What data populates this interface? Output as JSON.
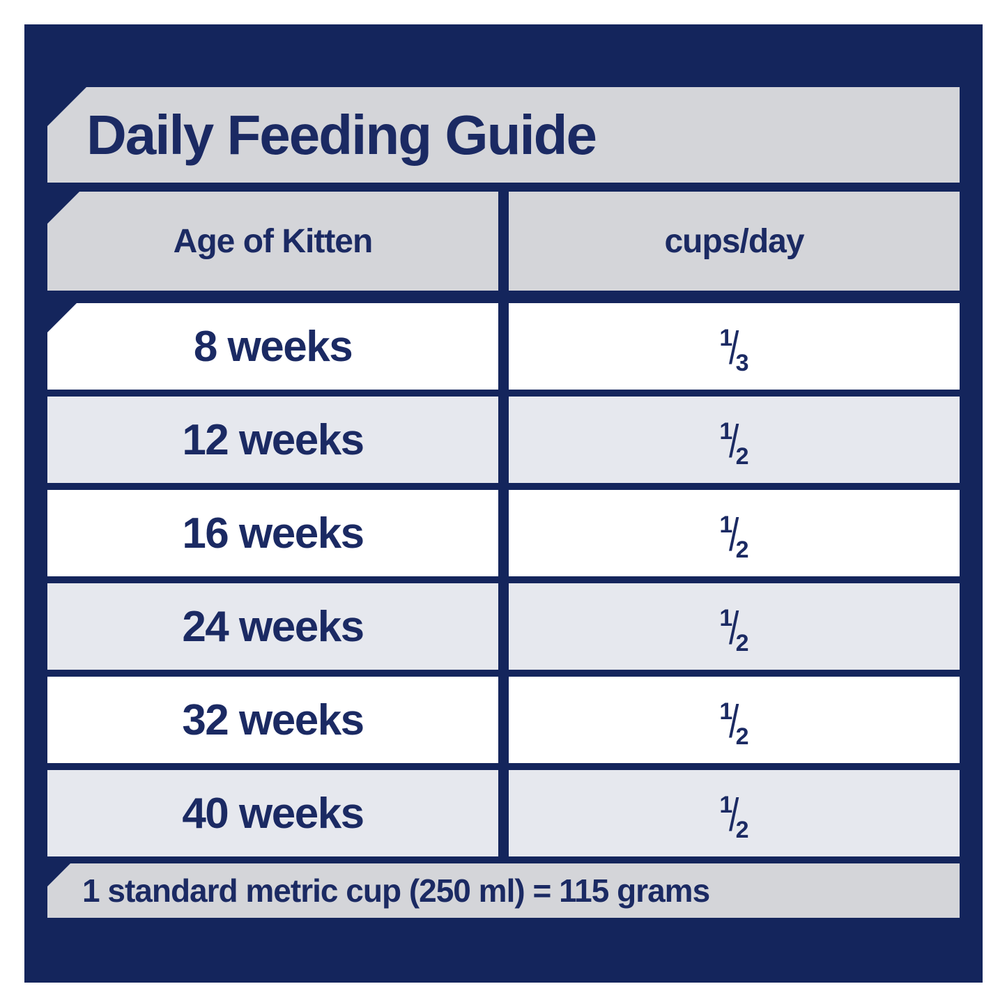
{
  "title": "Daily Feeding Guide",
  "table": {
    "headers": {
      "age": "Age of Kitten",
      "cups": "cups/day"
    },
    "fraction_slash": "/",
    "rows": [
      {
        "age": "8 weeks",
        "num": "1",
        "den": "3"
      },
      {
        "age": "12 weeks",
        "num": "1",
        "den": "2"
      },
      {
        "age": "16 weeks",
        "num": "1",
        "den": "2"
      },
      {
        "age": "24 weeks",
        "num": "1",
        "den": "2"
      },
      {
        "age": "32 weeks",
        "num": "1",
        "den": "2"
      },
      {
        "age": "40 weeks",
        "num": "1",
        "den": "2"
      }
    ]
  },
  "footnote": "1 standard metric cup (250 ml) = 115 grams",
  "colors": {
    "background_navy": "#14255C",
    "banner_gray": "#D4D5D9",
    "row_alt_gray": "#E6E8EE",
    "row_white": "#FFFFFF",
    "text_navy": "#1B2A63",
    "page_margin": "#FFFFFF"
  },
  "chart_data": {
    "type": "table",
    "title": "Daily Feeding Guide",
    "columns": [
      "Age of Kitten",
      "cups/day"
    ],
    "rows": [
      [
        "8 weeks",
        "1/3"
      ],
      [
        "12 weeks",
        "1/2"
      ],
      [
        "16 weeks",
        "1/2"
      ],
      [
        "24 weeks",
        "1/2"
      ],
      [
        "32 weeks",
        "1/2"
      ],
      [
        "40 weeks",
        "1/2"
      ]
    ],
    "footnote": "1 standard metric cup (250 ml) = 115 grams"
  }
}
